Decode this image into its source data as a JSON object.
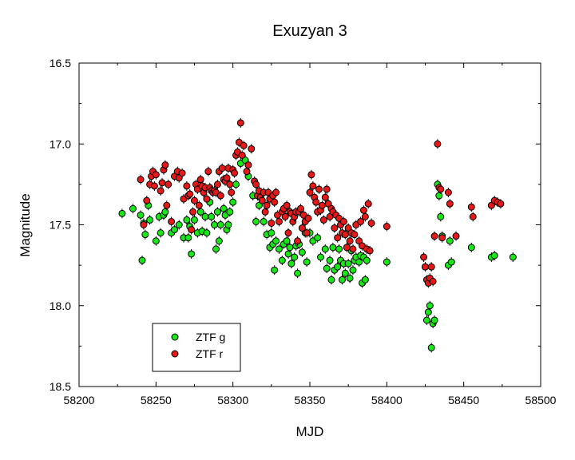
{
  "chart_data": {
    "type": "scatter",
    "title": "Exuzyan 3",
    "xlabel": "MJD",
    "ylabel": "Magnitude",
    "xlim": [
      58200,
      58500
    ],
    "ylim": [
      16.5,
      18.5
    ],
    "y_inverted": true,
    "grid": false,
    "legend_position": "bottom-left",
    "x_ticks": [
      "58200",
      "58250",
      "58300",
      "58350",
      "58400",
      "58450",
      "58500"
    ],
    "y_ticks": [
      "16.5",
      "17.0",
      "17.5",
      "18.0",
      "18.5"
    ],
    "series": [
      {
        "name": "ZTF g",
        "color": "#19e619",
        "points": [
          [
            58228,
            17.43
          ],
          [
            58235,
            17.4
          ],
          [
            58240,
            17.44
          ],
          [
            58241,
            17.72
          ],
          [
            58242,
            17.49
          ],
          [
            58243,
            17.56
          ],
          [
            58245,
            17.38
          ],
          [
            58246,
            17.47
          ],
          [
            58250,
            17.6
          ],
          [
            58252,
            17.45
          ],
          [
            58253,
            17.55
          ],
          [
            58255,
            17.44
          ],
          [
            58256,
            17.42
          ],
          [
            58260,
            17.55
          ],
          [
            58262,
            17.53
          ],
          [
            58265,
            17.5
          ],
          [
            58268,
            17.58
          ],
          [
            58270,
            17.47
          ],
          [
            58271,
            17.58
          ],
          [
            58272,
            17.51
          ],
          [
            58273,
            17.68
          ],
          [
            58275,
            17.47
          ],
          [
            58277,
            17.55
          ],
          [
            58279,
            17.42
          ],
          [
            58280,
            17.54
          ],
          [
            58282,
            17.45
          ],
          [
            58283,
            17.55
          ],
          [
            58285,
            17.36
          ],
          [
            58286,
            17.45
          ],
          [
            58288,
            17.5
          ],
          [
            58289,
            17.65
          ],
          [
            58290,
            17.42
          ],
          [
            58291,
            17.6
          ],
          [
            58292,
            17.5
          ],
          [
            58294,
            17.4
          ],
          [
            58295,
            17.44
          ],
          [
            58296,
            17.53
          ],
          [
            58297,
            17.5
          ],
          [
            58298,
            17.42
          ],
          [
            58300,
            17.36
          ],
          [
            58302,
            17.25
          ],
          [
            58305,
            17.12
          ],
          [
            58308,
            17.1
          ],
          [
            58310,
            17.2
          ],
          [
            58313,
            17.32
          ],
          [
            58315,
            17.48
          ],
          [
            58317,
            17.38
          ],
          [
            58320,
            17.48
          ],
          [
            58322,
            17.56
          ],
          [
            58324,
            17.64
          ],
          [
            58325,
            17.55
          ],
          [
            58326,
            17.62
          ],
          [
            58327,
            17.78
          ],
          [
            58328,
            17.6
          ],
          [
            58330,
            17.65
          ],
          [
            58332,
            17.72
          ],
          [
            58333,
            17.62
          ],
          [
            58335,
            17.6
          ],
          [
            58336,
            17.68
          ],
          [
            58337,
            17.64
          ],
          [
            58338,
            17.74
          ],
          [
            58340,
            17.7
          ],
          [
            58341,
            17.63
          ],
          [
            58342,
            17.8
          ],
          [
            58343,
            17.62
          ],
          [
            58345,
            17.67
          ],
          [
            58347,
            17.55
          ],
          [
            58348,
            17.73
          ],
          [
            58350,
            17.55
          ],
          [
            58352,
            17.6
          ],
          [
            58355,
            17.58
          ],
          [
            58357,
            17.7
          ],
          [
            58360,
            17.65
          ],
          [
            58361,
            17.77
          ],
          [
            58363,
            17.72
          ],
          [
            58364,
            17.84
          ],
          [
            58365,
            17.64
          ],
          [
            58366,
            17.78
          ],
          [
            58368,
            17.76
          ],
          [
            58369,
            17.65
          ],
          [
            58370,
            17.72
          ],
          [
            58371,
            17.84
          ],
          [
            58372,
            17.74
          ],
          [
            58373,
            17.8
          ],
          [
            58375,
            17.74
          ],
          [
            58376,
            17.83
          ],
          [
            58377,
            17.66
          ],
          [
            58378,
            17.78
          ],
          [
            58379,
            17.72
          ],
          [
            58380,
            17.7
          ],
          [
            58382,
            17.73
          ],
          [
            58383,
            17.69
          ],
          [
            58384,
            17.86
          ],
          [
            58385,
            17.7
          ],
          [
            58386,
            17.84
          ],
          [
            58387,
            17.72
          ],
          [
            58400,
            17.73
          ],
          [
            58425,
            17.76
          ],
          [
            58426,
            18.09
          ],
          [
            58427,
            18.04
          ],
          [
            58428,
            18.0
          ],
          [
            58429,
            18.26
          ],
          [
            58430,
            18.11
          ],
          [
            58431,
            18.09
          ],
          [
            58433,
            17.25
          ],
          [
            58434,
            17.32
          ],
          [
            58435,
            17.45
          ],
          [
            58436,
            17.57
          ],
          [
            58440,
            17.75
          ],
          [
            58441,
            17.6
          ],
          [
            58442,
            17.73
          ],
          [
            58455,
            17.64
          ],
          [
            58468,
            17.7
          ],
          [
            58470,
            17.69
          ],
          [
            58482,
            17.7
          ]
        ]
      },
      {
        "name": "ZTF r",
        "color": "#e61919",
        "points": [
          [
            58240,
            17.22
          ],
          [
            58242,
            17.5
          ],
          [
            58244,
            17.35
          ],
          [
            58246,
            17.25
          ],
          [
            58247,
            17.2
          ],
          [
            58248,
            17.17
          ],
          [
            58249,
            17.26
          ],
          [
            58250,
            17.19
          ],
          [
            58253,
            17.29
          ],
          [
            58254,
            17.24
          ],
          [
            58255,
            17.16
          ],
          [
            58256,
            17.13
          ],
          [
            58257,
            17.38
          ],
          [
            58258,
            17.25
          ],
          [
            58260,
            17.48
          ],
          [
            58262,
            17.2
          ],
          [
            58264,
            17.17
          ],
          [
            58265,
            17.21
          ],
          [
            58267,
            17.18
          ],
          [
            58268,
            17.34
          ],
          [
            58270,
            17.26
          ],
          [
            58271,
            17.32
          ],
          [
            58272,
            17.31
          ],
          [
            58273,
            17.53
          ],
          [
            58274,
            17.42
          ],
          [
            58275,
            17.35
          ],
          [
            58276,
            17.25
          ],
          [
            58277,
            17.28
          ],
          [
            58278,
            17.38
          ],
          [
            58279,
            17.22
          ],
          [
            58280,
            17.26
          ],
          [
            58281,
            17.3
          ],
          [
            58282,
            17.27
          ],
          [
            58283,
            17.34
          ],
          [
            58284,
            17.17
          ],
          [
            58285,
            17.27
          ],
          [
            58286,
            17.29
          ],
          [
            58287,
            17.3
          ],
          [
            58288,
            17.29
          ],
          [
            58289,
            17.3
          ],
          [
            58290,
            17.25
          ],
          [
            58291,
            17.17
          ],
          [
            58292,
            17.32
          ],
          [
            58293,
            17.15
          ],
          [
            58294,
            17.22
          ],
          [
            58295,
            17.23
          ],
          [
            58296,
            17.21
          ],
          [
            58297,
            17.15
          ],
          [
            58298,
            17.25
          ],
          [
            58299,
            17.3
          ],
          [
            58300,
            17.16
          ],
          [
            58301,
            17.18
          ],
          [
            58302,
            17.07
          ],
          [
            58303,
            17.05
          ],
          [
            58304,
            16.99
          ],
          [
            58305,
            16.87
          ],
          [
            58306,
            17.07
          ],
          [
            58307,
            17.01
          ],
          [
            58309,
            17.17
          ],
          [
            58310,
            17.13
          ],
          [
            58312,
            17.03
          ],
          [
            58314,
            17.23
          ],
          [
            58315,
            17.25
          ],
          [
            58316,
            17.32
          ],
          [
            58317,
            17.29
          ],
          [
            58318,
            17.33
          ],
          [
            58319,
            17.35
          ],
          [
            58320,
            17.3
          ],
          [
            58321,
            17.42
          ],
          [
            58322,
            17.38
          ],
          [
            58323,
            17.3
          ],
          [
            58324,
            17.34
          ],
          [
            58325,
            17.49
          ],
          [
            58326,
            17.32
          ],
          [
            58327,
            17.36
          ],
          [
            58328,
            17.3
          ],
          [
            58329,
            17.44
          ],
          [
            58330,
            17.48
          ],
          [
            58332,
            17.42
          ],
          [
            58333,
            17.4
          ],
          [
            58334,
            17.45
          ],
          [
            58335,
            17.38
          ],
          [
            58336,
            17.55
          ],
          [
            58337,
            17.42
          ],
          [
            58338,
            17.43
          ],
          [
            58339,
            17.48
          ],
          [
            58340,
            17.45
          ],
          [
            58341,
            17.42
          ],
          [
            58342,
            17.6
          ],
          [
            58343,
            17.42
          ],
          [
            58344,
            17.4
          ],
          [
            58345,
            17.52
          ],
          [
            58346,
            17.44
          ],
          [
            58347,
            17.48
          ],
          [
            58348,
            17.55
          ],
          [
            58349,
            17.46
          ],
          [
            58350,
            17.3
          ],
          [
            58351,
            17.19
          ],
          [
            58352,
            17.26
          ],
          [
            58353,
            17.33
          ],
          [
            58354,
            17.36
          ],
          [
            58355,
            17.42
          ],
          [
            58356,
            17.28
          ],
          [
            58357,
            17.41
          ],
          [
            58358,
            17.38
          ],
          [
            58359,
            17.47
          ],
          [
            58360,
            17.33
          ],
          [
            58361,
            17.28
          ],
          [
            58362,
            17.37
          ],
          [
            58363,
            17.45
          ],
          [
            58364,
            17.4
          ],
          [
            58365,
            17.42
          ],
          [
            58366,
            17.52
          ],
          [
            58367,
            17.44
          ],
          [
            58368,
            17.58
          ],
          [
            58369,
            17.46
          ],
          [
            58370,
            17.5
          ],
          [
            58371,
            17.55
          ],
          [
            58372,
            17.48
          ],
          [
            58373,
            17.56
          ],
          [
            58374,
            17.64
          ],
          [
            58375,
            17.52
          ],
          [
            58376,
            17.6
          ],
          [
            58377,
            17.55
          ],
          [
            58378,
            17.65
          ],
          [
            58379,
            17.56
          ],
          [
            58380,
            17.5
          ],
          [
            58382,
            17.6
          ],
          [
            58383,
            17.48
          ],
          [
            58384,
            17.63
          ],
          [
            58385,
            17.41
          ],
          [
            58386,
            17.45
          ],
          [
            58387,
            17.65
          ],
          [
            58388,
            17.37
          ],
          [
            58389,
            17.66
          ],
          [
            58390,
            17.49
          ],
          [
            58400,
            17.51
          ],
          [
            58424,
            17.7
          ],
          [
            58425,
            17.76
          ],
          [
            58426,
            17.84
          ],
          [
            58427,
            17.86
          ],
          [
            58428,
            17.83
          ],
          [
            58429,
            17.76
          ],
          [
            58430,
            17.85
          ],
          [
            58431,
            17.57
          ],
          [
            58433,
            17.0
          ],
          [
            58434,
            17.27
          ],
          [
            58435,
            17.28
          ],
          [
            58436,
            17.58
          ],
          [
            58440,
            17.3
          ],
          [
            58441,
            17.37
          ],
          [
            58445,
            17.57
          ],
          [
            58455,
            17.39
          ],
          [
            58456,
            17.45
          ],
          [
            58468,
            17.38
          ],
          [
            58470,
            17.35
          ],
          [
            58472,
            17.36
          ],
          [
            58474,
            17.37
          ]
        ]
      }
    ]
  }
}
